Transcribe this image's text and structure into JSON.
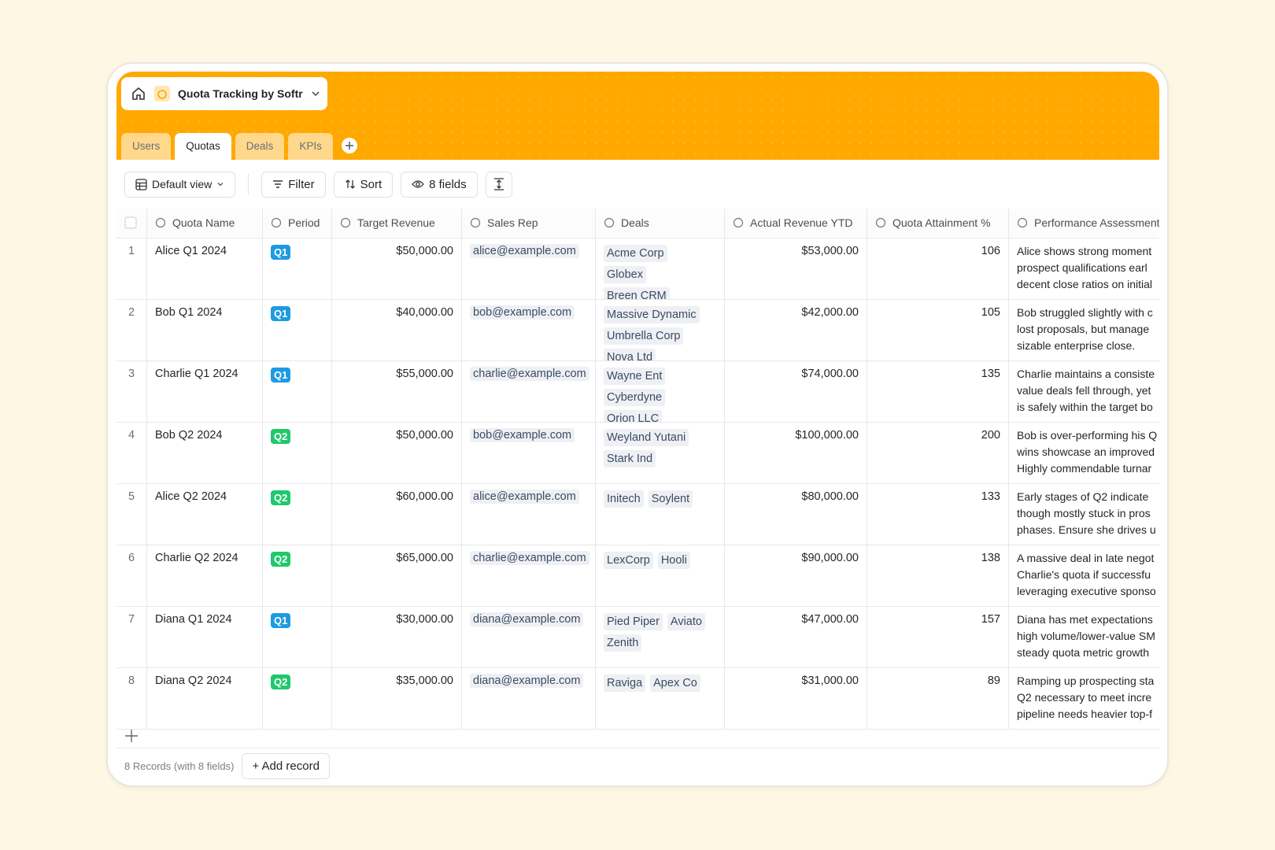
{
  "header": {
    "title": "Quota Tracking by Softr"
  },
  "tabs": [
    "Users",
    "Quotas",
    "Deals",
    "KPIs"
  ],
  "active_tab": "Quotas",
  "toolbar": {
    "view": "Default view",
    "filter": "Filter",
    "sort": "Sort",
    "fields": "8 fields"
  },
  "table": {
    "columns": [
      "Quota Name",
      "Period",
      "Target Revenue",
      "Sales Rep",
      "Deals",
      "Actual Revenue YTD",
      "Quota Attainment %",
      "Performance Assessment"
    ],
    "period_colors": {
      "Q1": "#1d9be2",
      "Q2": "#20c86c"
    },
    "rows": [
      {
        "n": 1,
        "name": "Alice Q1 2024",
        "period": "Q1",
        "target": "$50,000.00",
        "rep": "alice@example.com",
        "deals": [
          "Acme Corp",
          "Globex",
          "Breen CRM"
        ],
        "actual": "$53,000.00",
        "attainment": 106,
        "assessment": [
          "Alice shows strong moment",
          "prospect qualifications earl",
          "decent close ratios on initial"
        ]
      },
      {
        "n": 2,
        "name": "Bob Q1 2024",
        "period": "Q1",
        "target": "$40,000.00",
        "rep": "bob@example.com",
        "deals": [
          "Massive Dynamic",
          "Umbrella Corp",
          "Nova Ltd"
        ],
        "actual": "$42,000.00",
        "attainment": 105,
        "assessment": [
          "Bob struggled slightly with c",
          "lost proposals, but manage",
          "sizable enterprise close."
        ]
      },
      {
        "n": 3,
        "name": "Charlie Q1 2024",
        "period": "Q1",
        "target": "$55,000.00",
        "rep": "charlie@example.com",
        "deals": [
          "Wayne Ent",
          "Cyberdyne",
          "Orion LLC"
        ],
        "actual": "$74,000.00",
        "attainment": 135,
        "assessment": [
          "Charlie maintains a consiste",
          "value deals fell through, yet",
          "is safely within the target bo"
        ]
      },
      {
        "n": 4,
        "name": "Bob Q2 2024",
        "period": "Q2",
        "target": "$50,000.00",
        "rep": "bob@example.com",
        "deals": [
          "Weyland Yutani",
          "Stark Ind"
        ],
        "actual": "$100,000.00",
        "attainment": 200,
        "assessment": [
          "Bob is over-performing his Q",
          "wins showcase an improved",
          "Highly commendable turnar"
        ]
      },
      {
        "n": 5,
        "name": "Alice Q2 2024",
        "period": "Q2",
        "target": "$60,000.00",
        "rep": "alice@example.com",
        "deals": [
          "Initech",
          "Soylent"
        ],
        "actual": "$80,000.00",
        "attainment": 133,
        "assessment": [
          "Early stages of Q2 indicate",
          "though mostly stuck in pros",
          "phases. Ensure she drives u"
        ]
      },
      {
        "n": 6,
        "name": "Charlie Q2 2024",
        "period": "Q2",
        "target": "$65,000.00",
        "rep": "charlie@example.com",
        "deals": [
          "LexCorp",
          "Hooli"
        ],
        "actual": "$90,000.00",
        "attainment": 138,
        "assessment": [
          "A massive deal in late negot",
          "Charlie's quota if successfu",
          "leveraging executive sponso"
        ]
      },
      {
        "n": 7,
        "name": "Diana Q1 2024",
        "period": "Q1",
        "target": "$30,000.00",
        "rep": "diana@example.com",
        "deals": [
          "Pied Piper",
          "Aviato",
          "Zenith"
        ],
        "actual": "$47,000.00",
        "attainment": 157,
        "assessment": [
          "Diana has met expectations",
          "high volume/lower-value SM",
          "steady quota metric growth"
        ]
      },
      {
        "n": 8,
        "name": "Diana Q2 2024",
        "period": "Q2",
        "target": "$35,000.00",
        "rep": "diana@example.com",
        "deals": [
          "Raviga",
          "Apex Co"
        ],
        "actual": "$31,000.00",
        "attainment": 89,
        "assessment": [
          "Ramping up prospecting sta",
          "Q2 necessary to meet incre",
          "pipeline needs heavier top-f"
        ]
      }
    ]
  },
  "footer": {
    "records": "8 Records (with 8 fields)",
    "add": "+ Add record"
  }
}
